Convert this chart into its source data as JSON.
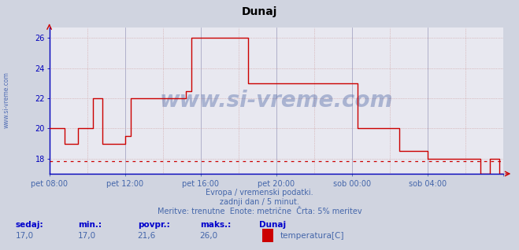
{
  "title": "Dunaj",
  "background_color": "#d0d4e0",
  "plot_background": "#e8e8f0",
  "line_color": "#cc0000",
  "axis_color": "#0000bb",
  "tick_color": "#4466aa",
  "ylim": [
    17.0,
    26.7
  ],
  "yticks": [
    18,
    20,
    22,
    24,
    26
  ],
  "hline_value": 17.85,
  "xtick_positions": [
    0,
    4,
    8,
    12,
    16,
    20,
    24
  ],
  "xtick_labels": [
    "pet 08:00",
    "pet 12:00",
    "pet 16:00",
    "pet 20:00",
    "sob 00:00",
    "sob 04:00",
    ""
  ],
  "watermark": "www.si-vreme.com",
  "subtitle1": "Evropa / vremenski podatki.",
  "subtitle2": "zadnji dan / 5 minut.",
  "subtitle3": "Meritve: trenutne  Enote: metrične  Črta: 5% meritev",
  "stats_labels": [
    "sedaj:",
    "min.:",
    "povpr.:",
    "maks.:",
    "Dunaj"
  ],
  "stats_vals": [
    "17,0",
    "17,0",
    "21,6",
    "26,0"
  ],
  "legend_label": "temperatura[C]",
  "legend_color": "#cc0000",
  "temp_data_x": [
    0.0,
    0.8,
    0.8,
    1.5,
    1.5,
    2.3,
    2.3,
    2.8,
    2.8,
    4.0,
    4.0,
    4.3,
    4.3,
    7.2,
    7.2,
    7.5,
    7.5,
    8.2,
    8.2,
    8.7,
    8.7,
    10.5,
    10.5,
    11.3,
    11.3,
    13.2,
    13.2,
    14.2,
    14.2,
    15.5,
    15.5,
    16.3,
    16.3,
    16.8,
    16.8,
    18.0,
    18.0,
    18.5,
    18.5,
    20.0,
    20.0,
    20.8,
    20.8,
    21.5,
    21.5,
    22.0,
    22.0,
    22.8,
    22.8,
    23.3,
    23.3,
    23.8,
    23.8,
    24.0
  ],
  "temp_data_y": [
    20.0,
    20.0,
    19.0,
    19.0,
    20.0,
    20.0,
    22.0,
    22.0,
    19.0,
    19.0,
    19.5,
    19.5,
    22.0,
    22.0,
    22.5,
    22.5,
    26.0,
    26.0,
    26.0,
    26.0,
    26.0,
    26.0,
    23.0,
    23.0,
    23.0,
    23.0,
    23.0,
    23.0,
    23.0,
    23.0,
    23.0,
    23.0,
    20.0,
    20.0,
    20.0,
    20.0,
    20.0,
    20.0,
    18.5,
    18.5,
    18.0,
    18.0,
    18.0,
    18.0,
    18.0,
    18.0,
    18.0,
    18.0,
    17.0,
    17.0,
    18.0,
    18.0,
    17.0,
    17.0
  ]
}
